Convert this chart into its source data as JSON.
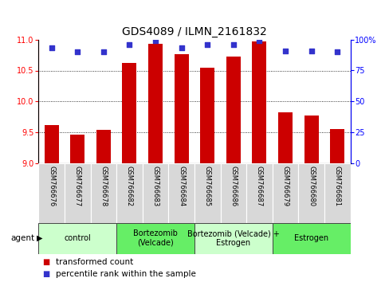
{
  "title": "GDS4089 / ILMN_2161832",
  "samples": [
    "GSM766676",
    "GSM766677",
    "GSM766678",
    "GSM766682",
    "GSM766683",
    "GSM766684",
    "GSM766685",
    "GSM766686",
    "GSM766687",
    "GSM766679",
    "GSM766680",
    "GSM766681"
  ],
  "transformed_count": [
    9.62,
    9.47,
    9.54,
    10.62,
    10.93,
    10.76,
    10.55,
    10.72,
    10.97,
    9.82,
    9.78,
    9.56
  ],
  "percentile_rank": [
    93,
    90,
    90,
    96,
    99,
    93,
    96,
    96,
    99,
    91,
    91,
    90
  ],
  "ylim_left": [
    9,
    11
  ],
  "ylim_right": [
    0,
    100
  ],
  "yticks_left": [
    9,
    9.5,
    10,
    10.5,
    11
  ],
  "yticks_right": [
    0,
    25,
    50,
    75,
    100
  ],
  "bar_color": "#cc0000",
  "dot_color": "#3333cc",
  "bar_bottom": 9,
  "groups": [
    {
      "label": "control",
      "start": 0,
      "end": 3,
      "color": "#ccffcc"
    },
    {
      "label": "Bortezomib\n(Velcade)",
      "start": 3,
      "end": 6,
      "color": "#66ee66"
    },
    {
      "label": "Bortezomib (Velcade) +\nEstrogen",
      "start": 6,
      "end": 9,
      "color": "#ccffcc"
    },
    {
      "label": "Estrogen",
      "start": 9,
      "end": 12,
      "color": "#66ee66"
    }
  ],
  "agent_label": "agent",
  "title_fontsize": 10,
  "tick_fontsize": 7,
  "group_fontsize": 7,
  "sample_fontsize": 6,
  "legend_fontsize": 7.5,
  "background_color": "#ffffff"
}
